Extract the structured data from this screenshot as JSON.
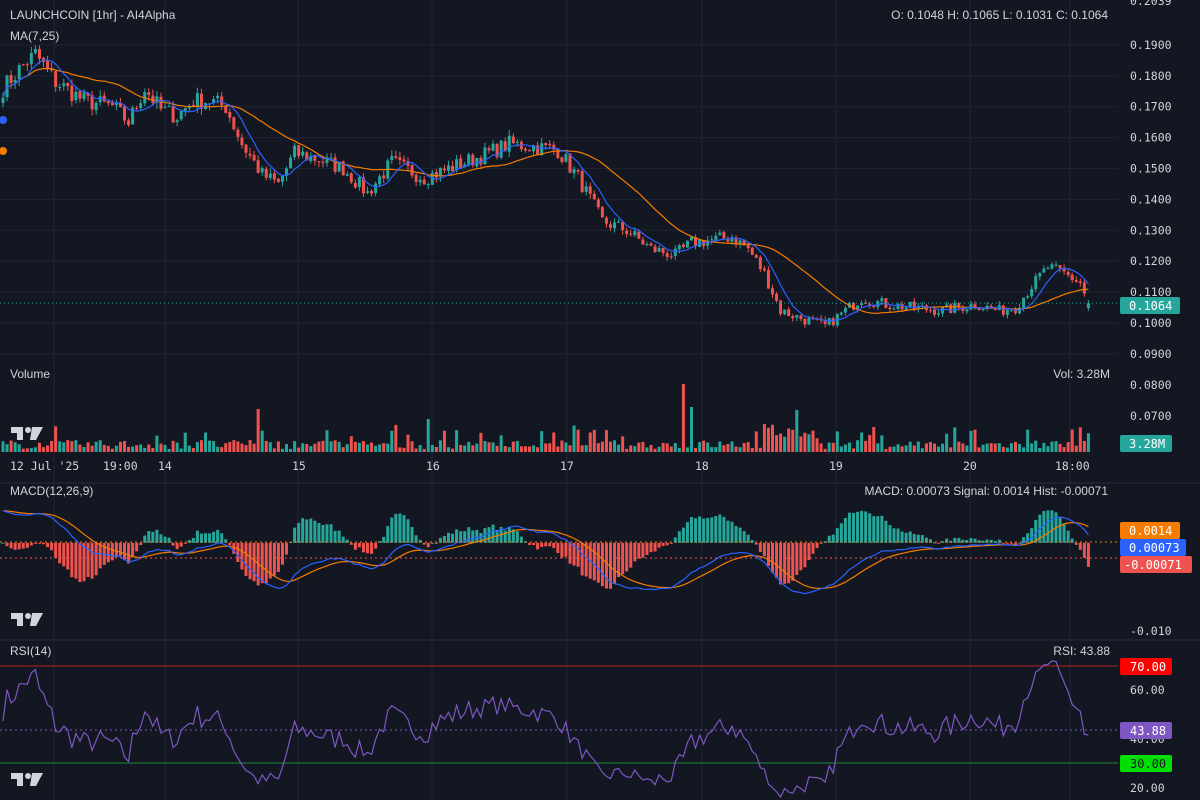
{
  "colors": {
    "background": "#131722",
    "grid": "#1f2433",
    "separator": "#2a2e39",
    "text": "#d1d4dc",
    "up": "#26a69a",
    "down": "#ef5350",
    "ma_fast": "#2962ff",
    "ma_slow": "#f57c00",
    "rsi": "#7e57c2"
  },
  "header": {
    "symbol": "LAUNCHCOIN [1hr] - AI4Alpha",
    "ma_label": "MA(7,25)",
    "ohlc": "O: 0.1048 H: 0.1065 L: 0.1031 C: 0.1064",
    "last_price": "0.1064"
  },
  "volume": {
    "label": "Volume",
    "readout": "Vol: 3.28M",
    "last": "3.28M"
  },
  "macd": {
    "label": "MACD(12,26,9)",
    "readout": "MACD: 0.00073 Signal: 0.0014 Hist: -0.00071",
    "signal_pill": "0.0014",
    "macd_pill": "0.00073",
    "hist_pill": "-0.00071",
    "axis_label": "-0.010"
  },
  "rsi": {
    "label": "RSI(14)",
    "readout": "RSI: 43.88",
    "upper": "70.00",
    "lower": "30.00",
    "value": "43.88",
    "axis_labels": [
      "60.00",
      "40.00",
      "20.00"
    ]
  },
  "price_axis": [
    "0.2039",
    "0.1900",
    "0.1800",
    "0.1700",
    "0.1600",
    "0.1500",
    "0.1400",
    "0.1300",
    "0.1200",
    "0.1100",
    "0.1000",
    "0.0900",
    "0.0800",
    "0.0700"
  ],
  "time_axis": [
    "12 Jul '25",
    "19:00",
    "14",
    "15",
    "16",
    "17",
    "18",
    "19",
    "20",
    "18:00"
  ],
  "chart_data": {
    "type": "candlestick",
    "title": "LAUNCHCOIN [1hr] - AI4Alpha",
    "interval": "1hr",
    "price_range": [
      0.088,
      0.2039
    ],
    "price_anchors": [
      [
        0,
        0.176
      ],
      [
        4,
        0.182
      ],
      [
        8,
        0.187
      ],
      [
        13,
        0.178
      ],
      [
        20,
        0.172
      ],
      [
        27,
        0.17
      ],
      [
        31,
        0.165
      ],
      [
        35,
        0.176
      ],
      [
        39,
        0.169
      ],
      [
        43,
        0.167
      ],
      [
        47,
        0.172
      ],
      [
        51,
        0.172
      ],
      [
        55,
        0.17
      ],
      [
        59,
        0.158
      ],
      [
        64,
        0.148
      ],
      [
        68,
        0.145
      ],
      [
        72,
        0.155
      ],
      [
        78,
        0.153
      ],
      [
        84,
        0.15
      ],
      [
        90,
        0.142
      ],
      [
        96,
        0.152
      ],
      [
        104,
        0.147
      ],
      [
        112,
        0.151
      ],
      [
        118,
        0.154
      ],
      [
        125,
        0.158
      ],
      [
        131,
        0.157
      ],
      [
        137,
        0.156
      ],
      [
        142,
        0.147
      ],
      [
        148,
        0.133
      ],
      [
        154,
        0.13
      ],
      [
        160,
        0.124
      ],
      [
        166,
        0.122
      ],
      [
        170,
        0.126
      ],
      [
        176,
        0.127
      ],
      [
        180,
        0.128
      ],
      [
        184,
        0.124
      ],
      [
        188,
        0.116
      ],
      [
        192,
        0.104
      ],
      [
        198,
        0.101
      ],
      [
        203,
        0.099
      ],
      [
        207,
        0.103
      ],
      [
        212,
        0.108
      ],
      [
        218,
        0.106
      ],
      [
        224,
        0.105
      ],
      [
        232,
        0.104
      ],
      [
        240,
        0.106
      ],
      [
        246,
        0.104
      ],
      [
        250,
        0.105
      ],
      [
        254,
        0.112
      ],
      [
        258,
        0.118
      ],
      [
        262,
        0.116
      ],
      [
        266,
        0.113
      ],
      [
        268,
        0.106
      ]
    ],
    "last_ohlc": {
      "open": 0.1048,
      "high": 0.1065,
      "low": 0.1031,
      "close": 0.1064
    },
    "moving_averages": [
      7,
      25
    ],
    "volume_last": "3.28M",
    "macd": {
      "params": [
        12,
        26,
        9
      ],
      "macd": 0.00073,
      "signal": 0.0014,
      "hist": -0.00071,
      "range": [
        -0.0125,
        0.006
      ]
    },
    "rsi": {
      "period": 14,
      "value": 43.88,
      "upper": 70,
      "lower": 30,
      "range": [
        17,
        83
      ]
    }
  }
}
